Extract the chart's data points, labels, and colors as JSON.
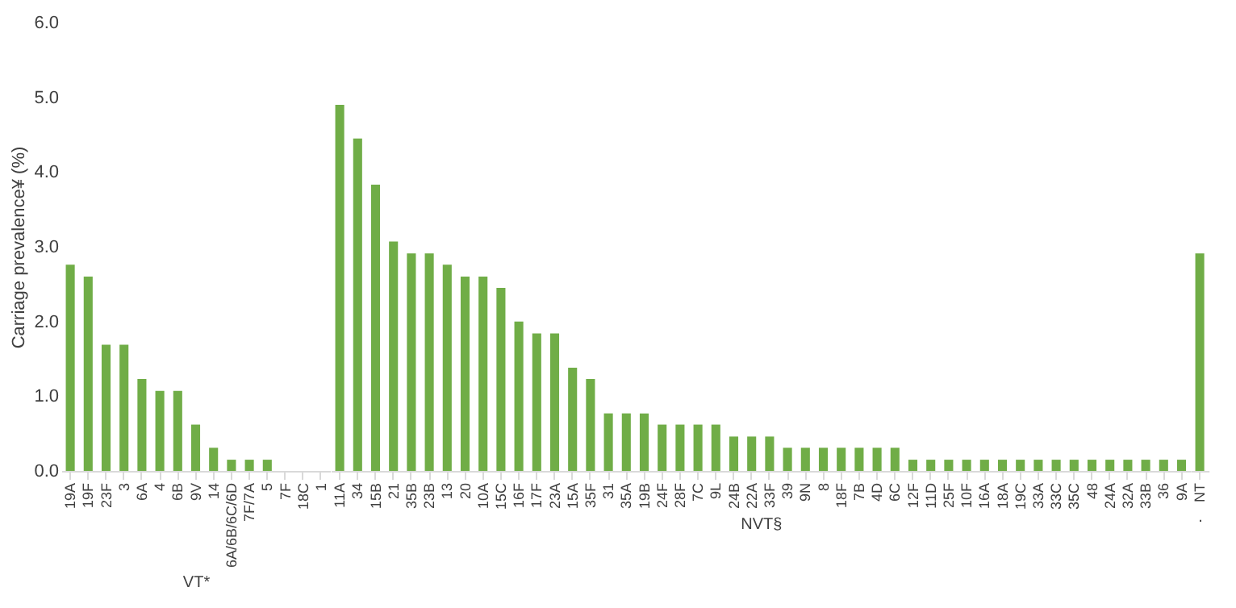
{
  "chart_data": [
    {
      "type": "bar",
      "xlabel": "VT*",
      "ylabel": "Carriage prevalence¥ (%)",
      "categories": [
        "19A",
        "19F",
        "23F",
        "3",
        "6A",
        "4",
        "6B",
        "9V",
        "14",
        "6A/6B/6C/6D",
        "7F/7A",
        "5",
        "7F",
        "18C",
        "1"
      ],
      "values": [
        2.76,
        2.6,
        1.69,
        1.69,
        1.23,
        1.07,
        1.07,
        0.62,
        0.31,
        0.15,
        0.15,
        0.15,
        0,
        0,
        0
      ],
      "color": "#70ad47",
      "ylim": [
        0,
        6
      ],
      "yticks": [
        {
          "value": 0,
          "label": "0.0"
        },
        {
          "value": 1,
          "label": "1.0"
        },
        {
          "value": 2,
          "label": "2.0"
        },
        {
          "value": 3,
          "label": "3.0"
        },
        {
          "value": 4,
          "label": "4.0"
        },
        {
          "value": 5,
          "label": "5.0"
        },
        {
          "value": 6,
          "label": "6.0"
        }
      ],
      "grid": false
    },
    {
      "type": "bar",
      "xlabel": "NVT§",
      "categories": [
        "11A",
        "34",
        "15B",
        "21",
        "35B",
        "23B",
        "13",
        "20",
        "10A",
        "15C",
        "16F",
        "17F",
        "23A",
        "15A",
        "35F",
        "31",
        "35A",
        "19B",
        "24F",
        "28F",
        "7C",
        "9L",
        "24B",
        "22A",
        "33F",
        "39",
        "9N",
        "8",
        "18F",
        "7B",
        "4D",
        "6C",
        "12F",
        "11D",
        "25F",
        "10F",
        "16A",
        "18A",
        "19C",
        "33A",
        "33C",
        "35C",
        "48",
        "24A",
        "32A",
        "33B",
        "36",
        "9A"
      ],
      "values": [
        4.9,
        4.45,
        3.83,
        3.07,
        2.91,
        2.91,
        2.76,
        2.6,
        2.6,
        2.45,
        2.0,
        1.84,
        1.84,
        1.38,
        1.23,
        0.77,
        0.77,
        0.77,
        0.62,
        0.62,
        0.62,
        0.62,
        0.46,
        0.46,
        0.46,
        0.31,
        0.31,
        0.31,
        0.31,
        0.31,
        0.31,
        0.31,
        0.15,
        0.15,
        0.15,
        0.15,
        0.15,
        0.15,
        0.15,
        0.15,
        0.15,
        0.15,
        0.15,
        0.15,
        0.15,
        0.15,
        0.15,
        0.15
      ],
      "color": "#70ad47",
      "ylim": [
        0,
        6
      ],
      "grid": false,
      "tick_labels": "x"
    },
    {
      "type": "bar",
      "xlabel": ".",
      "categories": [
        "NT"
      ],
      "values": [
        2.91
      ],
      "color": "#70ad47",
      "ylim": [
        0,
        6
      ],
      "grid": false,
      "tick_labels": "x"
    }
  ]
}
